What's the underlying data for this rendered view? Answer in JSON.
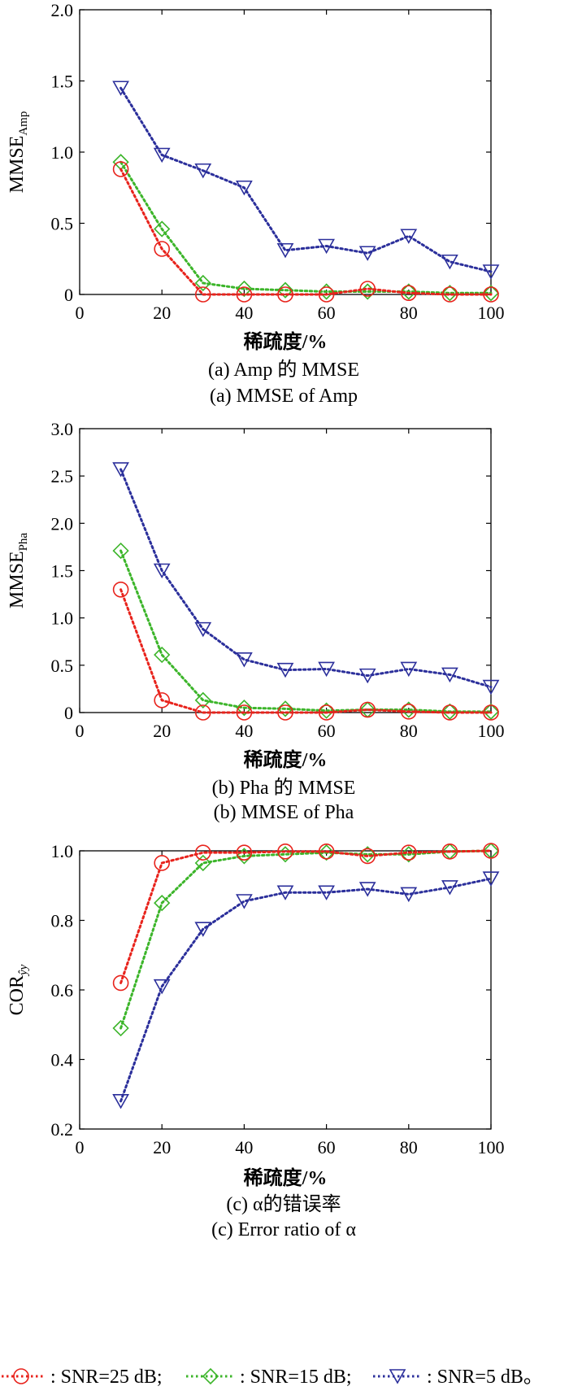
{
  "chart_data": [
    {
      "type": "line",
      "panel_caption_cn": "(a) Amp 的 MMSE",
      "panel_caption_en": "(a) MMSE of Amp",
      "xlabel": "稀疏度/%",
      "ylabel": "MMSE",
      "ylabel_sub": "Amp",
      "xlim": [
        0,
        100
      ],
      "ylim": [
        0,
        2.0
      ],
      "xticks": [
        "0",
        "20",
        "40",
        "60",
        "80",
        "100"
      ],
      "yticks": [
        "0",
        "0.5",
        "1.0",
        "1.5",
        "2.0"
      ],
      "x": [
        10,
        20,
        30,
        40,
        50,
        60,
        70,
        80,
        90,
        100
      ],
      "series": [
        {
          "name": "SNR=25 dB",
          "color": "#e8231c",
          "marker": "circle",
          "values": [
            0.88,
            0.32,
            0.0,
            0.0,
            0.0,
            0.0,
            0.04,
            0.01,
            0.0,
            0.0
          ]
        },
        {
          "name": "SNR=15 dB",
          "color": "#3cb52a",
          "marker": "diamond",
          "values": [
            0.93,
            0.46,
            0.08,
            0.04,
            0.03,
            0.02,
            0.02,
            0.02,
            0.01,
            0.01
          ]
        },
        {
          "name": "SNR=5 dB",
          "color": "#2b2f9b",
          "marker": "triangle-down",
          "values": [
            1.45,
            0.98,
            0.87,
            0.75,
            0.31,
            0.34,
            0.29,
            0.41,
            0.23,
            0.16
          ]
        }
      ]
    },
    {
      "type": "line",
      "panel_caption_cn": "(b) Pha 的 MMSE",
      "panel_caption_en": "(b) MMSE of Pha",
      "xlabel": "稀疏度/%",
      "ylabel": "MMSE",
      "ylabel_sub": "Pha",
      "xlim": [
        0,
        100
      ],
      "ylim": [
        0,
        3.0
      ],
      "xticks": [
        "0",
        "20",
        "40",
        "60",
        "80",
        "100"
      ],
      "yticks": [
        "0",
        "0.5",
        "1.0",
        "1.5",
        "2.0",
        "2.5",
        "3.0"
      ],
      "x": [
        10,
        20,
        30,
        40,
        50,
        60,
        70,
        80,
        90,
        100
      ],
      "series": [
        {
          "name": "SNR=25 dB",
          "color": "#e8231c",
          "marker": "circle",
          "values": [
            1.3,
            0.13,
            0.0,
            0.0,
            0.0,
            0.0,
            0.03,
            0.01,
            0.0,
            0.0
          ]
        },
        {
          "name": "SNR=15 dB",
          "color": "#3cb52a",
          "marker": "diamond",
          "values": [
            1.71,
            0.61,
            0.13,
            0.05,
            0.04,
            0.02,
            0.03,
            0.03,
            0.01,
            0.01
          ]
        },
        {
          "name": "SNR=5 dB",
          "color": "#2b2f9b",
          "marker": "triangle-down",
          "values": [
            2.57,
            1.5,
            0.88,
            0.56,
            0.45,
            0.46,
            0.39,
            0.46,
            0.4,
            0.27
          ]
        }
      ]
    },
    {
      "type": "line",
      "panel_caption_cn": "(c) α的错误率",
      "panel_caption_en": "(c) Error ratio of α",
      "xlabel": "稀疏度/%",
      "ylabel": "COR",
      "ylabel_sub": "ŷy",
      "xlim": [
        0,
        100
      ],
      "ylim": [
        0.2,
        1.0
      ],
      "xticks": [
        "0",
        "20",
        "40",
        "60",
        "80",
        "100"
      ],
      "yticks": [
        "0.2",
        "0.4",
        "0.6",
        "0.8",
        "1.0"
      ],
      "x": [
        10,
        20,
        30,
        40,
        50,
        60,
        70,
        80,
        90,
        100
      ],
      "series": [
        {
          "name": "SNR=25 dB",
          "color": "#e8231c",
          "marker": "circle",
          "values": [
            0.62,
            0.965,
            0.995,
            0.995,
            0.998,
            0.998,
            0.985,
            0.995,
            0.998,
            1.0
          ]
        },
        {
          "name": "SNR=15 dB",
          "color": "#3cb52a",
          "marker": "diamond",
          "values": [
            0.49,
            0.85,
            0.965,
            0.985,
            0.99,
            0.995,
            0.99,
            0.99,
            0.998,
            1.0
          ]
        },
        {
          "name": "SNR=5 dB",
          "color": "#2b2f9b",
          "marker": "triangle-down",
          "values": [
            0.28,
            0.61,
            0.775,
            0.855,
            0.88,
            0.88,
            0.89,
            0.875,
            0.895,
            0.92
          ]
        }
      ]
    }
  ],
  "legend": [
    {
      "label": ": SNR=25 dB;",
      "color": "#e8231c",
      "marker": "circle"
    },
    {
      "label": ": SNR=15 dB;",
      "color": "#3cb52a",
      "marker": "diamond"
    },
    {
      "label": ": SNR=5 dB。",
      "color": "#2b2f9b",
      "marker": "triangle-down"
    }
  ]
}
